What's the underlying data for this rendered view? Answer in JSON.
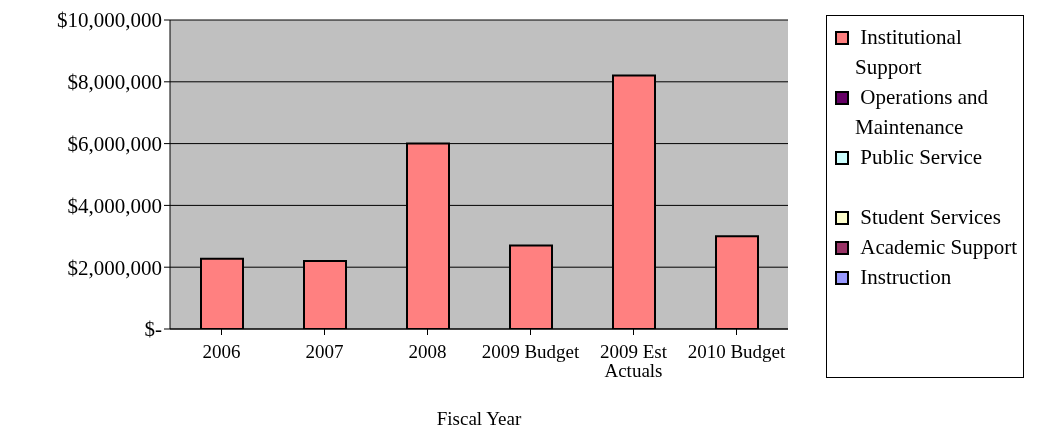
{
  "chart_data": {
    "type": "bar",
    "stacked": true,
    "xlabel": "Fiscal Year",
    "categories": [
      "2006",
      "2007",
      "2008",
      "2009 Budget",
      "2009 Est Actuals",
      "2010 Budget"
    ],
    "series": [
      {
        "name": "Institutional Support",
        "color": "#ff8080",
        "values": [
          2270000,
          2200000,
          6000000,
          2700000,
          8200000,
          3000000
        ]
      },
      {
        "name": "Operations and Maintenance",
        "color": "#660066",
        "values": [
          null,
          null,
          null,
          null,
          null,
          null
        ]
      },
      {
        "name": "Public Service",
        "color": "#ccffff",
        "values": [
          null,
          null,
          null,
          null,
          null,
          null
        ]
      },
      {
        "name": "Student Services",
        "color": "#ffffcc",
        "values": [
          null,
          null,
          null,
          null,
          null,
          null
        ]
      },
      {
        "name": "Academic Support",
        "color": "#993366",
        "values": [
          null,
          null,
          null,
          null,
          null,
          null
        ]
      },
      {
        "name": "Instruction",
        "color": "#9999ff",
        "values": [
          null,
          null,
          null,
          null,
          null,
          null
        ]
      }
    ],
    "ylim": [
      0,
      10000000
    ],
    "yticks": [
      {
        "value": 0,
        "label": "$-"
      },
      {
        "value": 2000000,
        "label": "$2,000,000"
      },
      {
        "value": 4000000,
        "label": "$4,000,000"
      },
      {
        "value": 6000000,
        "label": "$6,000,000"
      },
      {
        "value": 8000000,
        "label": "$8,000,000"
      },
      {
        "value": 10000000,
        "label": "$10,000,000"
      }
    ],
    "grid": "y",
    "legend": "right"
  }
}
